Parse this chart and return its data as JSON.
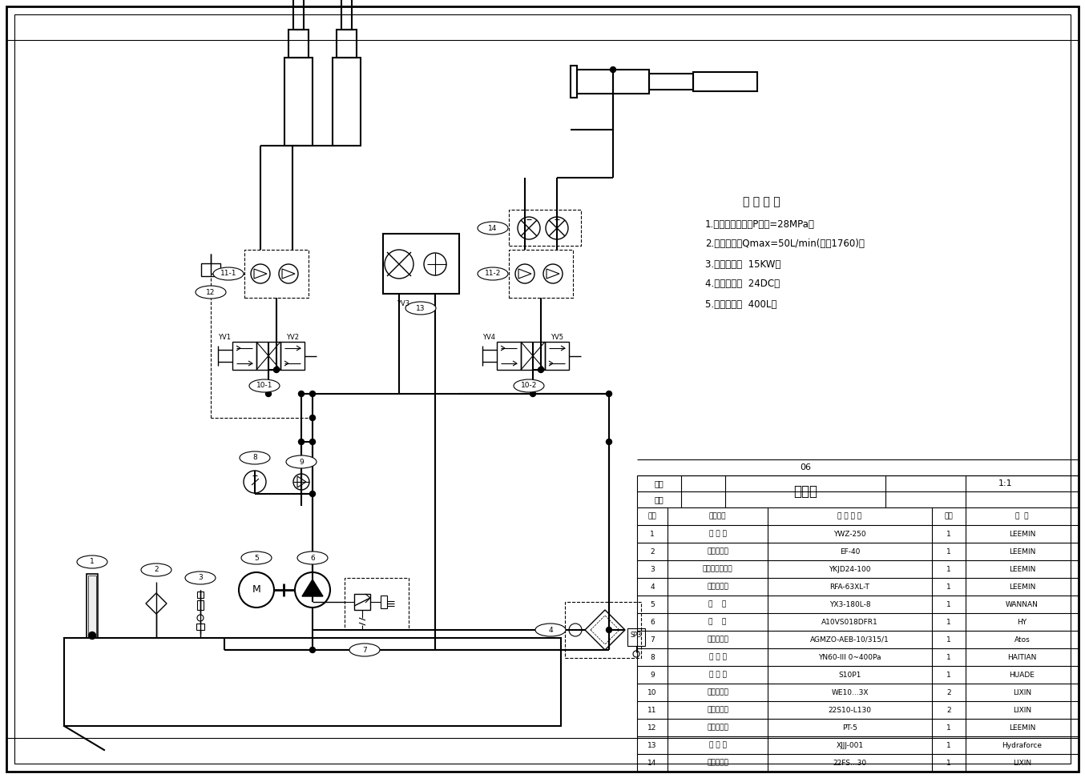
{
  "title": "油路图",
  "page_number": "06",
  "scale": "1:1",
  "bg_color": "#ffffff",
  "line_color": "#000000",
  "tech_requirements_title": "技 术 要 求",
  "tech_lines": [
    "1.系统最大压力：P最大=28MPa。",
    "2.最大流量：Qmax=50L/min(转速1760)。",
    "3.电机功率：  15KW。",
    "4.控制电压：  24DC。",
    "5.油箱容量：  400L。"
  ],
  "bom_rows": [
    [
      "14",
      "单向节流阀",
      "22FS...30",
      "1",
      "LIXIN"
    ],
    [
      "13",
      "溢 压 阀",
      "XJJJ-001",
      "1",
      "Hydraforce"
    ],
    [
      "12",
      "压力传感器",
      "PT-5",
      "1",
      "LEEMIN"
    ],
    [
      "11",
      "液控单向阀",
      "22S10-L130",
      "2",
      "LIXIN"
    ],
    [
      "10",
      "电磁换向阀",
      "WE10...3X",
      "2",
      "LIXIN"
    ],
    [
      "9",
      "单 向 阀",
      "S10P1",
      "1",
      "HUADE"
    ],
    [
      "8",
      "压 力 表",
      "YN60-III 0~400Pa",
      "1",
      "HAITIAN"
    ],
    [
      "7",
      "比例溢流阀",
      "AGMZO-AEB-10/315/1",
      "1",
      "Atos"
    ],
    [
      "6",
      "油    泵",
      "A10VS018DFR1",
      "1",
      "HY"
    ],
    [
      "5",
      "电    机",
      "YX3-180L-8",
      "1",
      "WANNAN"
    ],
    [
      "4",
      "回油过滤器",
      "RFA-63XL-T",
      "1",
      "LEEMIN"
    ],
    [
      "3",
      "液位控制继电器",
      "YKJD24-100",
      "1",
      "LEEMIN"
    ],
    [
      "2",
      "空气滤清器",
      "EF-40",
      "1",
      "LEEMIN"
    ],
    [
      "1",
      "液 位 计",
      "YWZ-250",
      "1",
      "LEEMIN"
    ]
  ],
  "bom_header": [
    "序号",
    "元件名称",
    "规 格 型 号",
    "数量",
    "各  注"
  ]
}
